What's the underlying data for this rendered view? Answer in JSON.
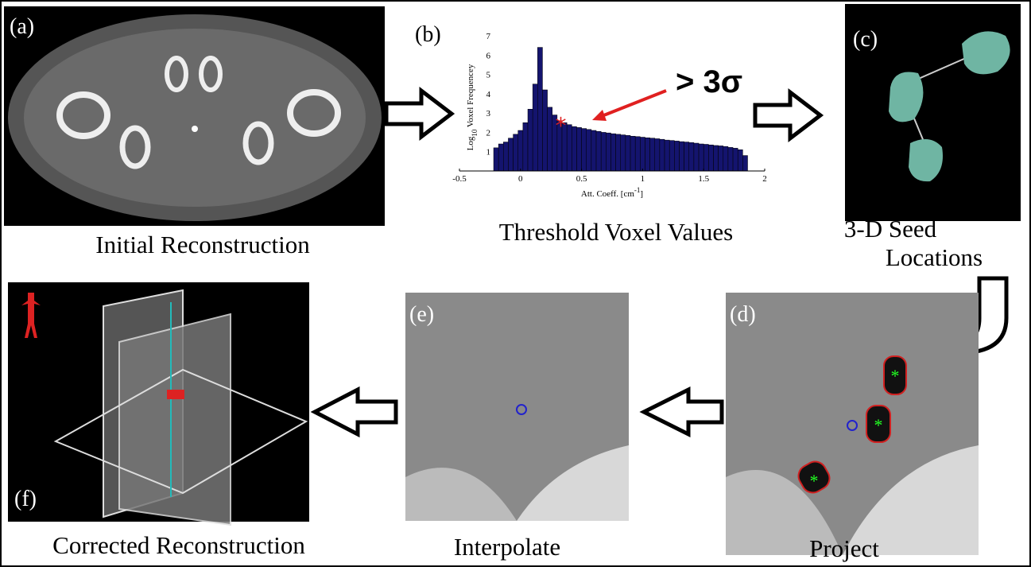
{
  "panels": [
    {
      "label": "(a)",
      "caption": [
        "Initial Reconstruction"
      ]
    },
    {
      "label": "(b)",
      "caption": [
        "Threshold Voxel Values"
      ]
    },
    {
      "label": "(c)",
      "caption": [
        "3-D Seed",
        "Locations"
      ]
    },
    {
      "label": "(d)",
      "caption": [
        "Project"
      ]
    },
    {
      "label": "(e)",
      "caption": [
        "Interpolate"
      ]
    },
    {
      "label": "(f)",
      "caption": [
        "Corrected Reconstruction"
      ]
    }
  ],
  "annotation": "> 3σ",
  "histogram": {
    "type": "histogram",
    "ylabel": [
      "Log",
      "10",
      " Voxel Frequencey"
    ],
    "xlabel": [
      "Att. Coeff. [cm",
      "-1",
      "]"
    ],
    "color": "#14146e",
    "xlim": [
      -0.5,
      2
    ],
    "xticks": [
      -0.5,
      0,
      0.5,
      1,
      1.5,
      2
    ],
    "ylim": [
      0,
      7
    ],
    "yticks": [
      1,
      2,
      3,
      4,
      5,
      6,
      7
    ],
    "bins": [
      -0.22,
      -0.18,
      -0.14,
      -0.1,
      -0.06,
      -0.02,
      0.02,
      0.06,
      0.1,
      0.14,
      0.18,
      0.22,
      0.26,
      0.3,
      0.34,
      0.38,
      0.42,
      0.46,
      0.5,
      0.54,
      0.58,
      0.62,
      0.66,
      0.7,
      0.74,
      0.78,
      0.82,
      0.86,
      0.9,
      0.94,
      0.98,
      1.02,
      1.06,
      1.1,
      1.14,
      1.18,
      1.22,
      1.26,
      1.3,
      1.34,
      1.38,
      1.42,
      1.46,
      1.5,
      1.54,
      1.58,
      1.62,
      1.66,
      1.7,
      1.74,
      1.78,
      1.82,
      1.86
    ],
    "counts": [
      1.2,
      1.4,
      1.5,
      1.7,
      1.9,
      2.1,
      2.5,
      3.2,
      4.5,
      6.4,
      4.2,
      3.3,
      2.9,
      2.6,
      2.5,
      2.4,
      2.3,
      2.25,
      2.2,
      2.15,
      2.1,
      2.05,
      2.0,
      1.97,
      1.93,
      1.9,
      1.87,
      1.84,
      1.8,
      1.78,
      1.75,
      1.72,
      1.7,
      1.67,
      1.64,
      1.6,
      1.58,
      1.55,
      1.52,
      1.5,
      1.47,
      1.44,
      1.4,
      1.38,
      1.35,
      1.32,
      1.3,
      1.27,
      1.22,
      1.18,
      1.1,
      0.8
    ],
    "threshold_marker": {
      "x": 0.33,
      "y": 2.45,
      "color": "#e02020"
    }
  }
}
